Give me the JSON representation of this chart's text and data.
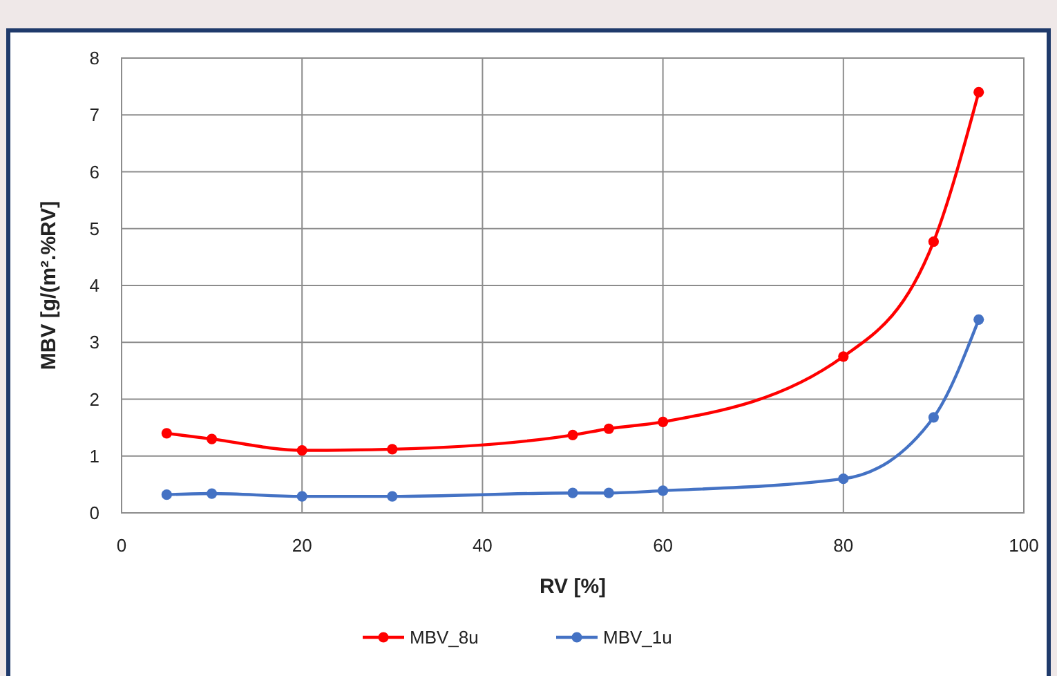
{
  "chart_data": {
    "type": "line",
    "xlabel": "RV [%]",
    "ylabel": "MBV [g/(m².%RV]",
    "x": [
      5,
      10,
      20,
      30,
      50,
      54,
      60,
      80,
      90,
      95
    ],
    "series": [
      {
        "name": "MBV_8u",
        "color": "#ff0000",
        "values": [
          1.4,
          1.3,
          1.1,
          1.12,
          1.37,
          1.48,
          1.6,
          2.75,
          4.77,
          7.4
        ]
      },
      {
        "name": "MBV_1u",
        "color": "#4472c4",
        "values": [
          0.32,
          0.34,
          0.29,
          0.29,
          0.35,
          0.35,
          0.39,
          0.6,
          1.68,
          3.4
        ]
      }
    ],
    "xlim": [
      0,
      100
    ],
    "xticks": [
      0,
      20,
      40,
      60,
      80,
      100
    ],
    "ylim": [
      0,
      8
    ],
    "yticks": [
      0,
      1,
      2,
      3,
      4,
      5,
      6,
      7,
      8
    ],
    "grid": true,
    "legend": "bottom",
    "marker": "circle",
    "line_style": "solid"
  }
}
